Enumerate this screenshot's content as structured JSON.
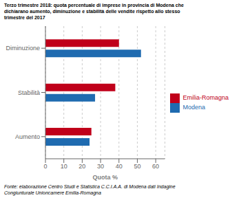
{
  "chart_data": {
    "type": "bar",
    "orientation": "horizontal",
    "title": "Terzo trimestre 2018: quota percentuale di imprese in provincia di Modena che\ndichiarano aumento, diminuzione e stabilità delle vendite rispetto allo stesso\ntrimestre del 2017",
    "annotations": [
      "Fonte: elaborazione Centro Studi e Statistica C.C.I.A.A. di Modena dati Indagine\nCongiunturale Unioncamere Emilia-Romagna"
    ],
    "categories": [
      "Aumento",
      "Stabilità",
      "Diminuzione"
    ],
    "series": [
      {
        "name": "Emilia-Romagna",
        "color": "#C0001A",
        "values": [
          25,
          38,
          40
        ]
      },
      {
        "name": "Modena",
        "color": "#1F6BB0",
        "values": [
          24,
          27,
          52
        ]
      }
    ],
    "xlabel": "Quota %",
    "xlim": [
      0,
      65
    ],
    "xticks": [
      0,
      10,
      20,
      30,
      40,
      50,
      60
    ],
    "grid": true,
    "legend": "right"
  }
}
